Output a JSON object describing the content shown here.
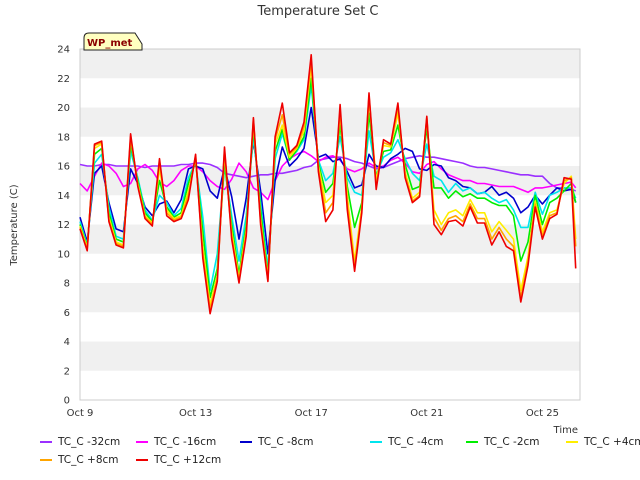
{
  "chart_data": {
    "type": "line",
    "title": "Temperature Set C",
    "xlabel": "Time",
    "ylabel": "Temperature (C)",
    "ylim": [
      0,
      24
    ],
    "yticks": [
      0,
      2,
      4,
      6,
      8,
      10,
      12,
      14,
      16,
      18,
      20,
      22,
      24
    ],
    "xlim_days": [
      9,
      26.3
    ],
    "xticks": [
      {
        "label": "Oct 9",
        "day": 9
      },
      {
        "label": "Oct 13",
        "day": 13
      },
      {
        "label": "Oct 17",
        "day": 17
      },
      {
        "label": "Oct 21",
        "day": 21
      },
      {
        "label": "Oct 25",
        "day": 25
      }
    ],
    "grid": "horizontal bands",
    "badge": "WP_met",
    "x": [
      9.0,
      9.25,
      9.5,
      9.75,
      10.0,
      10.25,
      10.5,
      10.75,
      11.0,
      11.25,
      11.5,
      11.75,
      12.0,
      12.25,
      12.5,
      12.75,
      13.0,
      13.25,
      13.5,
      13.75,
      14.0,
      14.25,
      14.5,
      14.75,
      15.0,
      15.25,
      15.5,
      15.75,
      16.0,
      16.25,
      16.5,
      16.75,
      17.0,
      17.25,
      17.5,
      17.75,
      18.0,
      18.25,
      18.5,
      18.75,
      19.0,
      19.25,
      19.5,
      19.75,
      20.0,
      20.25,
      20.5,
      20.75,
      21.0,
      21.25,
      21.5,
      21.75,
      22.0,
      22.25,
      22.5,
      22.75,
      23.0,
      23.25,
      23.5,
      23.75,
      24.0,
      24.25,
      24.5,
      24.75,
      25.0,
      25.25,
      25.5,
      25.75,
      26.0,
      26.15
    ],
    "series": [
      {
        "name": "TC_C -32cm",
        "color": "#9b30ff",
        "values": [
          16.1,
          16.0,
          16.0,
          16.1,
          16.1,
          16.0,
          16.0,
          16.0,
          16.0,
          15.9,
          16.0,
          16.0,
          16.0,
          16.0,
          16.1,
          16.1,
          16.2,
          16.2,
          16.1,
          15.9,
          15.5,
          15.4,
          15.3,
          15.2,
          15.3,
          15.4,
          15.4,
          15.5,
          15.5,
          15.6,
          15.7,
          15.9,
          16.0,
          16.4,
          16.5,
          16.6,
          16.6,
          16.5,
          16.3,
          16.2,
          16.0,
          15.8,
          15.9,
          16.1,
          16.3,
          16.5,
          16.6,
          16.7,
          16.6,
          16.6,
          16.5,
          16.4,
          16.3,
          16.2,
          16.0,
          15.9,
          15.9,
          15.8,
          15.7,
          15.6,
          15.5,
          15.4,
          15.4,
          15.3,
          15.3,
          14.8,
          14.5,
          14.5,
          14.4,
          14.3
        ]
      },
      {
        "name": "TC_C -16cm",
        "color": "#ff00ff",
        "values": [
          14.8,
          14.3,
          15.3,
          16.2,
          16.0,
          15.5,
          14.6,
          14.8,
          15.8,
          16.1,
          15.7,
          14.9,
          14.6,
          15.0,
          15.7,
          16.0,
          16.0,
          15.6,
          15.0,
          14.6,
          14.4,
          15.1,
          16.2,
          15.6,
          14.5,
          14.2,
          13.7,
          15.0,
          16.0,
          16.5,
          16.8,
          17.0,
          16.7,
          16.3,
          16.6,
          16.7,
          16.4,
          15.8,
          15.6,
          15.8,
          16.2,
          15.9,
          16.0,
          16.4,
          16.6,
          16.2,
          15.6,
          15.5,
          16.1,
          16.3,
          15.8,
          15.4,
          15.2,
          15.0,
          15.0,
          14.8,
          14.8,
          14.7,
          14.6,
          14.6,
          14.6,
          14.4,
          14.2,
          14.5,
          14.5,
          14.6,
          14.7,
          14.8,
          14.9,
          14.5
        ]
      },
      {
        "name": "TC_C -8cm",
        "color": "#0000cc",
        "values": [
          12.5,
          10.8,
          15.5,
          16.0,
          13.5,
          11.7,
          11.5,
          15.8,
          14.8,
          13.2,
          12.6,
          13.4,
          13.6,
          12.8,
          13.7,
          15.8,
          16.0,
          15.8,
          14.3,
          13.8,
          15.9,
          13.9,
          11.0,
          13.8,
          17.7,
          14.3,
          10.0,
          15.0,
          17.3,
          16.0,
          16.5,
          17.2,
          20.0,
          16.6,
          16.8,
          16.3,
          16.5,
          15.6,
          14.5,
          14.7,
          16.8,
          16.0,
          15.9,
          16.5,
          16.8,
          17.2,
          17.0,
          15.8,
          15.7,
          16.1,
          16.0,
          15.2,
          15.0,
          14.6,
          14.5,
          14.1,
          14.2,
          14.6,
          14.0,
          14.2,
          13.8,
          12.8,
          13.2,
          14.0,
          13.4,
          14.0,
          14.5,
          14.3,
          14.4,
          13.5
        ]
      },
      {
        "name": "TC_C -4cm",
        "color": "#00e5ee",
        "values": [
          12.2,
          10.6,
          16.2,
          16.8,
          13.2,
          11.2,
          11.0,
          17.0,
          15.2,
          13.0,
          12.3,
          14.0,
          13.5,
          12.6,
          13.1,
          15.2,
          16.2,
          12.5,
          7.5,
          10.0,
          16.0,
          12.6,
          9.5,
          12.6,
          18.0,
          13.5,
          9.0,
          16.5,
          18.2,
          16.5,
          17.0,
          17.8,
          21.5,
          16.4,
          15.0,
          15.5,
          18.0,
          15.2,
          14.2,
          14.0,
          18.4,
          15.4,
          16.6,
          16.9,
          17.8,
          16.5,
          15.5,
          15.0,
          17.5,
          15.3,
          15.0,
          14.2,
          14.8,
          14.3,
          14.5,
          14.1,
          14.2,
          13.8,
          13.5,
          13.7,
          13.0,
          11.8,
          11.8,
          14.2,
          12.7,
          14.0,
          14.2,
          14.5,
          14.5,
          13.8
        ]
      },
      {
        "name": "TC_C -2cm",
        "color": "#00ee00",
        "values": [
          12.0,
          10.5,
          16.8,
          17.2,
          12.8,
          11.0,
          10.8,
          17.5,
          15.0,
          12.8,
          12.2,
          15.0,
          13.2,
          12.5,
          12.8,
          14.8,
          16.3,
          11.5,
          7.0,
          9.0,
          16.2,
          12.0,
          8.6,
          12.0,
          18.6,
          13.0,
          8.5,
          17.0,
          18.5,
          16.4,
          17.1,
          18.0,
          22.0,
          16.2,
          14.2,
          14.8,
          18.8,
          14.6,
          11.8,
          13.5,
          19.6,
          15.2,
          17.0,
          17.1,
          18.8,
          16.1,
          14.4,
          14.6,
          18.6,
          14.5,
          14.5,
          13.8,
          14.3,
          13.9,
          14.1,
          13.8,
          13.8,
          13.5,
          13.3,
          13.3,
          12.6,
          9.5,
          10.8,
          14.0,
          12.0,
          13.5,
          13.8,
          14.3,
          14.8,
          13.5
        ]
      },
      {
        "name": "TC_C +4cm",
        "color": "#ffee00",
        "values": [
          11.9,
          10.4,
          17.2,
          17.5,
          12.5,
          10.8,
          10.6,
          17.9,
          14.8,
          12.6,
          12.1,
          15.8,
          13.0,
          12.4,
          12.6,
          14.3,
          16.5,
          10.5,
          6.5,
          8.5,
          16.8,
          11.5,
          8.3,
          11.6,
          19.0,
          12.4,
          8.3,
          17.5,
          18.8,
          16.6,
          17.2,
          18.4,
          22.8,
          16.0,
          13.5,
          14.0,
          19.5,
          14.0,
          9.5,
          13.2,
          20.5,
          15.0,
          17.4,
          17.3,
          19.6,
          15.6,
          13.8,
          14.2,
          19.2,
          13.0,
          12.0,
          12.8,
          13.0,
          12.6,
          13.7,
          12.8,
          12.8,
          11.5,
          12.2,
          11.6,
          11.0,
          7.5,
          9.8,
          13.6,
          11.5,
          12.8,
          13.0,
          14.8,
          15.3,
          11.0
        ]
      },
      {
        "name": "TC_C +8cm",
        "color": "#ffa500",
        "values": [
          11.8,
          10.3,
          17.4,
          17.6,
          12.3,
          10.7,
          10.5,
          18.0,
          14.7,
          12.5,
          12.0,
          16.2,
          12.8,
          12.3,
          12.5,
          14.0,
          16.7,
          10.0,
          6.2,
          8.3,
          17.1,
          11.2,
          8.1,
          11.4,
          19.2,
          12.2,
          8.2,
          17.8,
          19.5,
          16.8,
          17.3,
          18.7,
          23.2,
          15.8,
          12.8,
          13.5,
          19.8,
          13.5,
          9.1,
          13.0,
          20.8,
          14.7,
          17.6,
          17.4,
          20.0,
          15.4,
          13.6,
          14.0,
          19.3,
          12.5,
          11.6,
          12.4,
          12.6,
          12.2,
          13.4,
          12.4,
          12.4,
          11.0,
          11.8,
          11.0,
          10.5,
          7.0,
          9.5,
          13.4,
          11.2,
          12.6,
          12.8,
          15.0,
          15.2,
          10.5
        ]
      },
      {
        "name": "TC_C +12cm",
        "color": "#ee0000",
        "values": [
          11.7,
          10.2,
          17.5,
          17.7,
          12.2,
          10.6,
          10.4,
          18.2,
          14.6,
          12.4,
          11.9,
          16.5,
          12.6,
          12.2,
          12.4,
          13.7,
          16.8,
          9.7,
          5.9,
          8.1,
          17.3,
          11.0,
          8.0,
          11.2,
          19.3,
          12.0,
          8.1,
          18.0,
          20.3,
          16.9,
          17.4,
          19.0,
          23.6,
          15.6,
          12.2,
          13.0,
          20.2,
          13.0,
          8.8,
          12.8,
          21.0,
          14.4,
          17.8,
          17.5,
          20.3,
          15.2,
          13.5,
          13.9,
          19.4,
          12.0,
          11.3,
          12.2,
          12.3,
          11.9,
          13.2,
          12.1,
          12.1,
          10.6,
          11.5,
          10.5,
          10.2,
          6.7,
          9.2,
          13.2,
          11.0,
          12.4,
          12.7,
          15.2,
          15.1,
          9.0
        ]
      }
    ]
  }
}
